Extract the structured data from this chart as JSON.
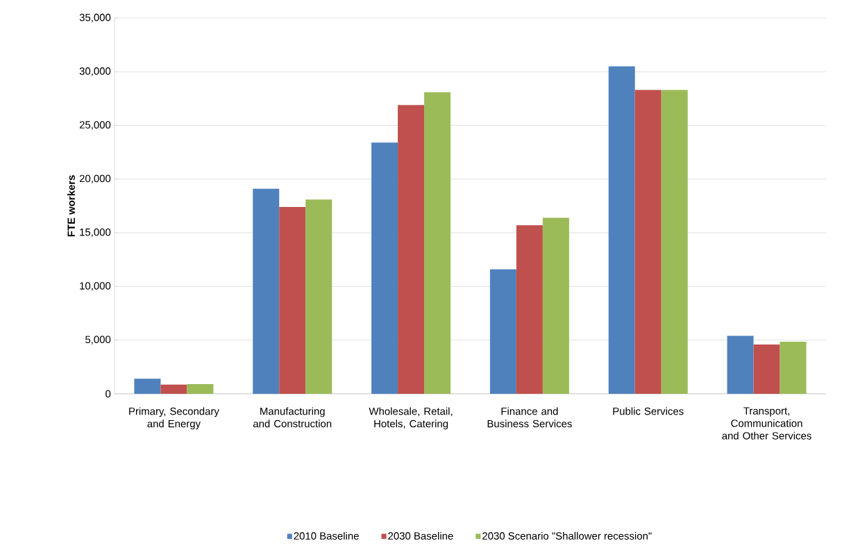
{
  "chart_data": {
    "type": "bar",
    "ylabel": "FTE workers",
    "categories": [
      "Primary, Secondary and Energy",
      "Manufacturing and Construction",
      "Wholesale, Retail, Hotels, Catering",
      "Finance and Business Services",
      "Public Services",
      "Transport, Communication and Other Services"
    ],
    "series": [
      {
        "name": "2010 Baseline",
        "color": "#4f81bd",
        "values": [
          1400,
          19100,
          23400,
          11600,
          30500,
          5400
        ]
      },
      {
        "name": "2030 Baseline",
        "color": "#c0504d",
        "values": [
          850,
          17400,
          26900,
          15700,
          28300,
          4600
        ]
      },
      {
        "name": "2030 Scenario \"Shallower recession\"",
        "color": "#9bbb59",
        "values": [
          900,
          18100,
          28100,
          16400,
          28300,
          4850
        ]
      }
    ],
    "ylim": [
      0,
      35000
    ],
    "yticks": [
      {
        "value": 0,
        "label": "0"
      },
      {
        "value": 5000,
        "label": "5,000"
      },
      {
        "value": 10000,
        "label": "10,000"
      },
      {
        "value": 15000,
        "label": "15,000"
      },
      {
        "value": 20000,
        "label": "20,000"
      },
      {
        "value": 25000,
        "label": "25,000"
      },
      {
        "value": 30000,
        "label": "30,000"
      },
      {
        "value": 35000,
        "label": "35,000"
      }
    ],
    "grid": "y",
    "legend": "bottom"
  }
}
